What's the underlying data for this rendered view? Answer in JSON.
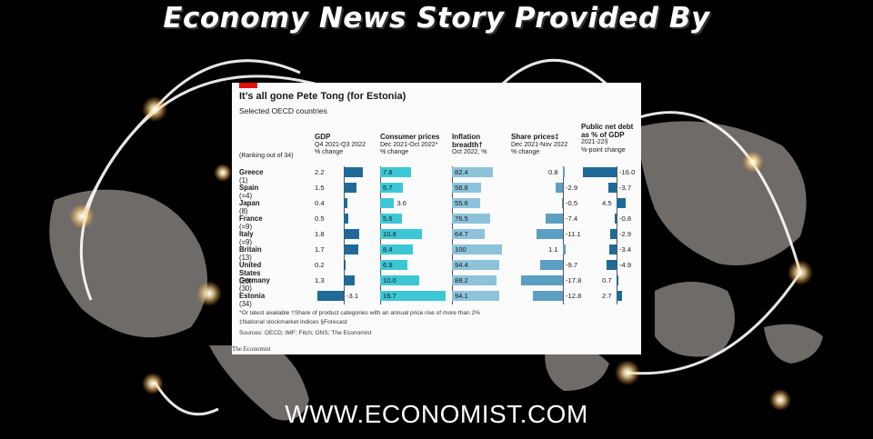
{
  "page": {
    "banner": "Economy News Story Provided By",
    "footer": "WWW.ECONOMIST.COM"
  },
  "colors": {
    "dark_blue": "#1f6a97",
    "cyan": "#3cc7d6",
    "light_blue": "#8cc3da",
    "mid_blue": "#5b9fc3",
    "card_bg": "#fbfbfb",
    "red_tag": "#e3120b"
  },
  "chart_data": {
    "type": "table",
    "title": "It’s all gone Pete Tong (for Estonia)",
    "subtitle": "Selected OECD countries",
    "ranking_note": "(Ranking out of 34)",
    "columns": [
      {
        "key": "gdp",
        "title": "GDP",
        "sub1": "Q4 2021-Q3 2022",
        "sub2": "% change"
      },
      {
        "key": "cpi",
        "title": "Consumer prices",
        "sub1": "Dec 2021-Oct 2022*",
        "sub2": "% change"
      },
      {
        "key": "breadth",
        "title": "Inflation",
        "title2": "breadth†",
        "sub1": "Oct 2022, %"
      },
      {
        "key": "shares",
        "title": "Share prices‡",
        "sub1": "Dec 2021-Nov 2022",
        "sub2": "% change"
      },
      {
        "key": "debt",
        "title": "Public net debt",
        "title2": "as % of GDP",
        "sub1": "2021-22§",
        "sub2": "%-point change"
      }
    ],
    "rows": [
      {
        "country": "Greece",
        "rank": "(1)",
        "gdp": 2.2,
        "cpi": 7.8,
        "breadth": 82.4,
        "shares": 0.8,
        "debt": -16.0
      },
      {
        "country": "Spain",
        "rank": "(=4)",
        "gdp": 1.5,
        "cpi": 5.7,
        "breadth": 58.8,
        "shares": -2.9,
        "debt": -3.7
      },
      {
        "country": "Japan",
        "rank": "(8)",
        "gdp": 0.4,
        "cpi": 3.6,
        "breadth": 55.6,
        "shares": -0.5,
        "debt": 4.5
      },
      {
        "country": "France",
        "rank": "(=9)",
        "gdp": 0.5,
        "cpi": 5.6,
        "breadth": 76.5,
        "shares": -7.4,
        "debt": -0.8
      },
      {
        "country": "Italy",
        "rank": "(=9)",
        "gdp": 1.8,
        "cpi": 10.8,
        "breadth": 64.7,
        "shares": -11.1,
        "debt": -2.9
      },
      {
        "country": "Britain",
        "rank": "(13)",
        "gdp": 1.7,
        "cpi": 8.4,
        "breadth": 100,
        "shares": 1.1,
        "debt": -3.4
      },
      {
        "country": "United States",
        "rank": "(20)",
        "gdp": 0.2,
        "cpi": 6.9,
        "breadth": 94.4,
        "shares": -9.7,
        "debt": -4.9
      },
      {
        "country": "Germany",
        "rank": "(30)",
        "gdp": 1.3,
        "cpi": 10.0,
        "breadth": 88.2,
        "shares": -17.8,
        "debt": 0.7
      },
      {
        "country": "Estonia",
        "rank": "(34)",
        "gdp": -3.1,
        "cpi": 16.7,
        "breadth": 94.1,
        "shares": -12.8,
        "debt": 2.7
      }
    ],
    "footnote1": "*Or latest available   †Share of product categories with an annual price rise of more than 2%",
    "footnote2": "‡National stockmarket indices   §Forecast",
    "sources": "Sources: OECD; IMF; Fitch; ONS; The Economist",
    "credit": "The Economist"
  }
}
